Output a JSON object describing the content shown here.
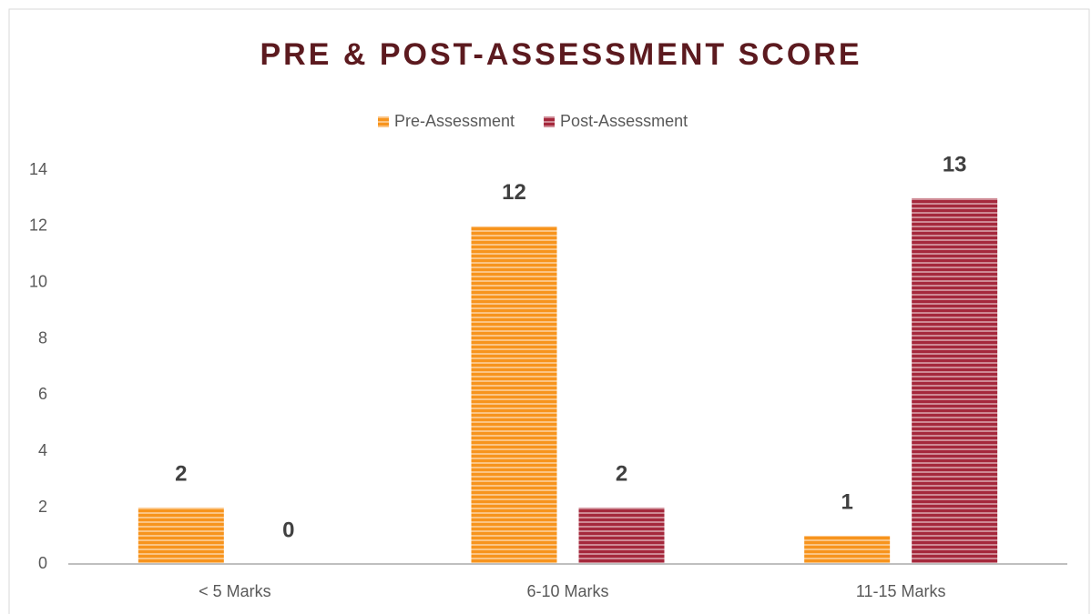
{
  "chart_data": {
    "type": "bar",
    "title": "PRE & POST-ASSESSMENT SCORE",
    "categories": [
      "< 5 Marks",
      "6-10 Marks",
      "11-15 Marks"
    ],
    "series": [
      {
        "name": "Pre-Assessment",
        "color": "#f7941d",
        "values": [
          2,
          12,
          1
        ]
      },
      {
        "name": "Post-Assessment",
        "color": "#a5283c",
        "values": [
          0,
          2,
          13
        ]
      }
    ],
    "ylim": [
      0,
      14
    ],
    "yticks": [
      0,
      2,
      4,
      6,
      8,
      10,
      12,
      14
    ],
    "grid": false,
    "legend": "top"
  }
}
